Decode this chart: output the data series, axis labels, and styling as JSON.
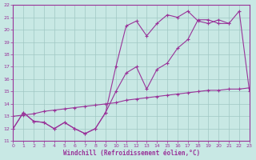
{
  "background_color": "#c8e8e4",
  "grid_color": "#a0c8c4",
  "line_color": "#993399",
  "xlabel": "Windchill (Refroidissement éolien,°C)",
  "xlim": [
    0,
    23
  ],
  "ylim": [
    11,
    22
  ],
  "xticks": [
    0,
    1,
    2,
    3,
    4,
    5,
    6,
    7,
    8,
    9,
    10,
    11,
    12,
    13,
    14,
    15,
    16,
    17,
    18,
    19,
    20,
    21,
    22,
    23
  ],
  "yticks": [
    11,
    12,
    13,
    14,
    15,
    16,
    17,
    18,
    19,
    20,
    21,
    22
  ],
  "line1_x": [
    0,
    1,
    2,
    3,
    4,
    5,
    6,
    7,
    8,
    9,
    10,
    11,
    12,
    13,
    14,
    15,
    16,
    17,
    18,
    19,
    20,
    21
  ],
  "line1_y": [
    12.0,
    13.3,
    12.6,
    12.5,
    12.0,
    12.5,
    12.0,
    11.6,
    12.0,
    13.3,
    17.0,
    20.3,
    20.7,
    19.5,
    20.5,
    21.2,
    21.0,
    21.5,
    20.7,
    20.5,
    20.8,
    20.5
  ],
  "line2_x": [
    0,
    1,
    2,
    3,
    4,
    5,
    6,
    7,
    8,
    9,
    10,
    11,
    12,
    13,
    14,
    15,
    16,
    17,
    18,
    19,
    20,
    21,
    22,
    23
  ],
  "line2_y": [
    12.0,
    13.3,
    12.6,
    12.5,
    12.0,
    12.5,
    12.0,
    11.6,
    12.0,
    13.3,
    15.0,
    16.5,
    17.0,
    15.2,
    16.8,
    17.3,
    18.5,
    19.2,
    20.8,
    20.8,
    20.5,
    20.5,
    21.5,
    15.0
  ],
  "line3_x": [
    0,
    1,
    2,
    3,
    4,
    5,
    6,
    7,
    8,
    9,
    10,
    11,
    12,
    13,
    14,
    15,
    16,
    17,
    18,
    19,
    20,
    21,
    22,
    23
  ],
  "line3_y": [
    13.0,
    13.1,
    13.2,
    13.4,
    13.5,
    13.6,
    13.7,
    13.8,
    13.9,
    14.0,
    14.1,
    14.3,
    14.4,
    14.5,
    14.6,
    14.7,
    14.8,
    14.9,
    15.0,
    15.1,
    15.1,
    15.2,
    15.2,
    15.3
  ]
}
